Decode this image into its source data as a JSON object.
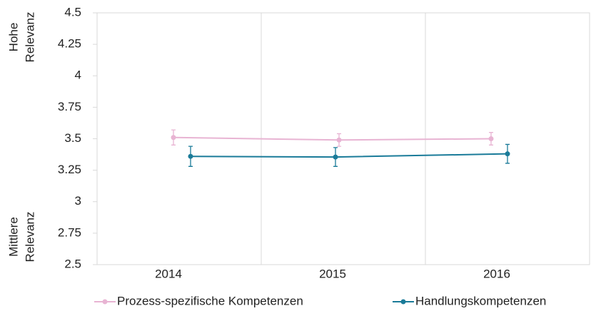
{
  "chart_data": {
    "type": "line",
    "y_label_top": [
      "Hohe",
      "Relevanz"
    ],
    "y_label_bottom": [
      "Mittlere",
      "Relevanz"
    ],
    "categories": [
      "2014",
      "2015",
      "2016"
    ],
    "series": [
      {
        "name": "Prozess-spezifische Kompetenzen",
        "color": "#e8b4d3",
        "values": [
          3.51,
          3.49,
          3.5
        ],
        "errors": [
          0.06,
          0.05,
          0.05
        ]
      },
      {
        "name": "Handlungskompetenzen",
        "color": "#1a7b99",
        "values": [
          3.36,
          3.355,
          3.38
        ],
        "errors": [
          0.08,
          0.075,
          0.075
        ]
      }
    ],
    "ylim": [
      2.5,
      4.5
    ],
    "yticks": [
      2.5,
      2.75,
      3,
      3.25,
      3.5,
      3.75,
      4,
      4.25,
      4.5
    ],
    "grid": true,
    "legend": "bottom"
  }
}
